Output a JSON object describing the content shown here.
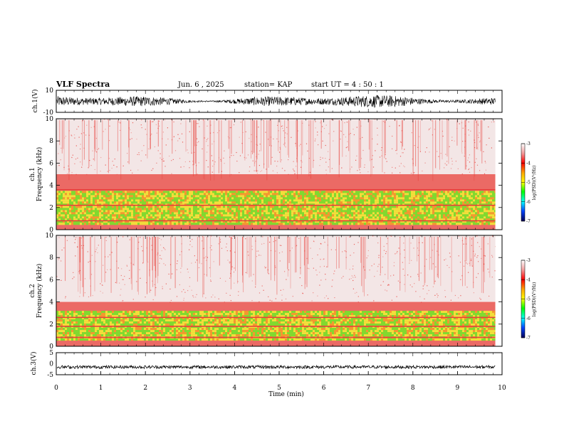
{
  "header": {
    "title": "VLF Spectra",
    "date": "Jun. 6 , 2025",
    "station": "station= KAP",
    "start_ut": "start UT =  4 : 50 : 1"
  },
  "axes": {
    "ch1_wave_label": "ch.1(V)",
    "ch1_spec_label_top": "ch.1",
    "ch1_spec_label_bottom": "Frequency (kHz)",
    "ch2_spec_label_top": "ch.2",
    "ch2_spec_label_bottom": "Frequency (kHz)",
    "ch3_wave_label": "ch.3(V)",
    "xlabel": "Time (min)",
    "colorbar_label": "log(PSD)(V²/Hz)"
  },
  "colors": {
    "spec_background": "#f3e6e6",
    "red": "#e8403a",
    "yellow": "#f2e13a",
    "green": "#7fdc2e",
    "orange": "#f39a2e",
    "waveform": "#000000"
  },
  "chart_data": [
    {
      "type": "line",
      "name": "ch1-waveform",
      "xlim": [
        0,
        10
      ],
      "ylim": [
        -10,
        10
      ],
      "x_ticks": [
        0,
        1,
        2,
        3,
        4,
        5,
        6,
        7,
        8,
        9,
        10
      ],
      "y_ticks": [
        -10,
        10
      ],
      "data_extent_min": 9.85,
      "description_note": "",
      "amplitude_range": [
        -6,
        6
      ]
    },
    {
      "type": "heatmap",
      "name": "ch1-spectrogram",
      "xlim": [
        0,
        10
      ],
      "ylim": [
        0,
        10
      ],
      "y_ticks": [
        0,
        2,
        4,
        6,
        8,
        10
      ],
      "data_extent_min": 9.85,
      "bands_khz": [
        {
          "from": 0.0,
          "to": 0.5,
          "level": -3.3
        },
        {
          "from": 0.5,
          "to": 1.2,
          "level": -4.2
        },
        {
          "from": 1.2,
          "to": 3.5,
          "level": -4.9
        },
        {
          "from": 3.5,
          "to": 5.0,
          "level": -3.6
        },
        {
          "from": 5.0,
          "to": 10.0,
          "level": -3.1
        }
      ],
      "lines_khz": [
        2.2,
        3.6,
        0.8
      ]
    },
    {
      "type": "heatmap",
      "name": "ch2-spectrogram",
      "xlim": [
        0,
        10
      ],
      "ylim": [
        0,
        10
      ],
      "y_ticks": [
        0,
        2,
        4,
        6,
        8,
        10
      ],
      "data_extent_min": 9.85,
      "bands_khz": [
        {
          "from": 0.0,
          "to": 0.6,
          "level": -3.3
        },
        {
          "from": 0.6,
          "to": 3.2,
          "level": -4.9
        },
        {
          "from": 3.2,
          "to": 4.0,
          "level": -3.6
        },
        {
          "from": 4.0,
          "to": 10.0,
          "level": -3.1
        }
      ],
      "lines_khz": [
        1.8,
        0.8,
        2.6
      ]
    },
    {
      "type": "line",
      "name": "ch3-waveform",
      "xlim": [
        0,
        10
      ],
      "ylim": [
        -5,
        5
      ],
      "x_ticks": [
        0,
        1,
        2,
        3,
        4,
        5,
        6,
        7,
        8,
        9,
        10
      ],
      "y_ticks": [
        -5,
        0,
        5
      ],
      "data_extent_min": 9.85,
      "amplitude_range": [
        -2.2,
        -0.8
      ]
    },
    {
      "type": "heatmap",
      "name": "colorbar",
      "zlim": [
        -7,
        -3
      ],
      "z_ticks": [
        -3,
        -4,
        -5,
        -6,
        -7
      ]
    }
  ]
}
